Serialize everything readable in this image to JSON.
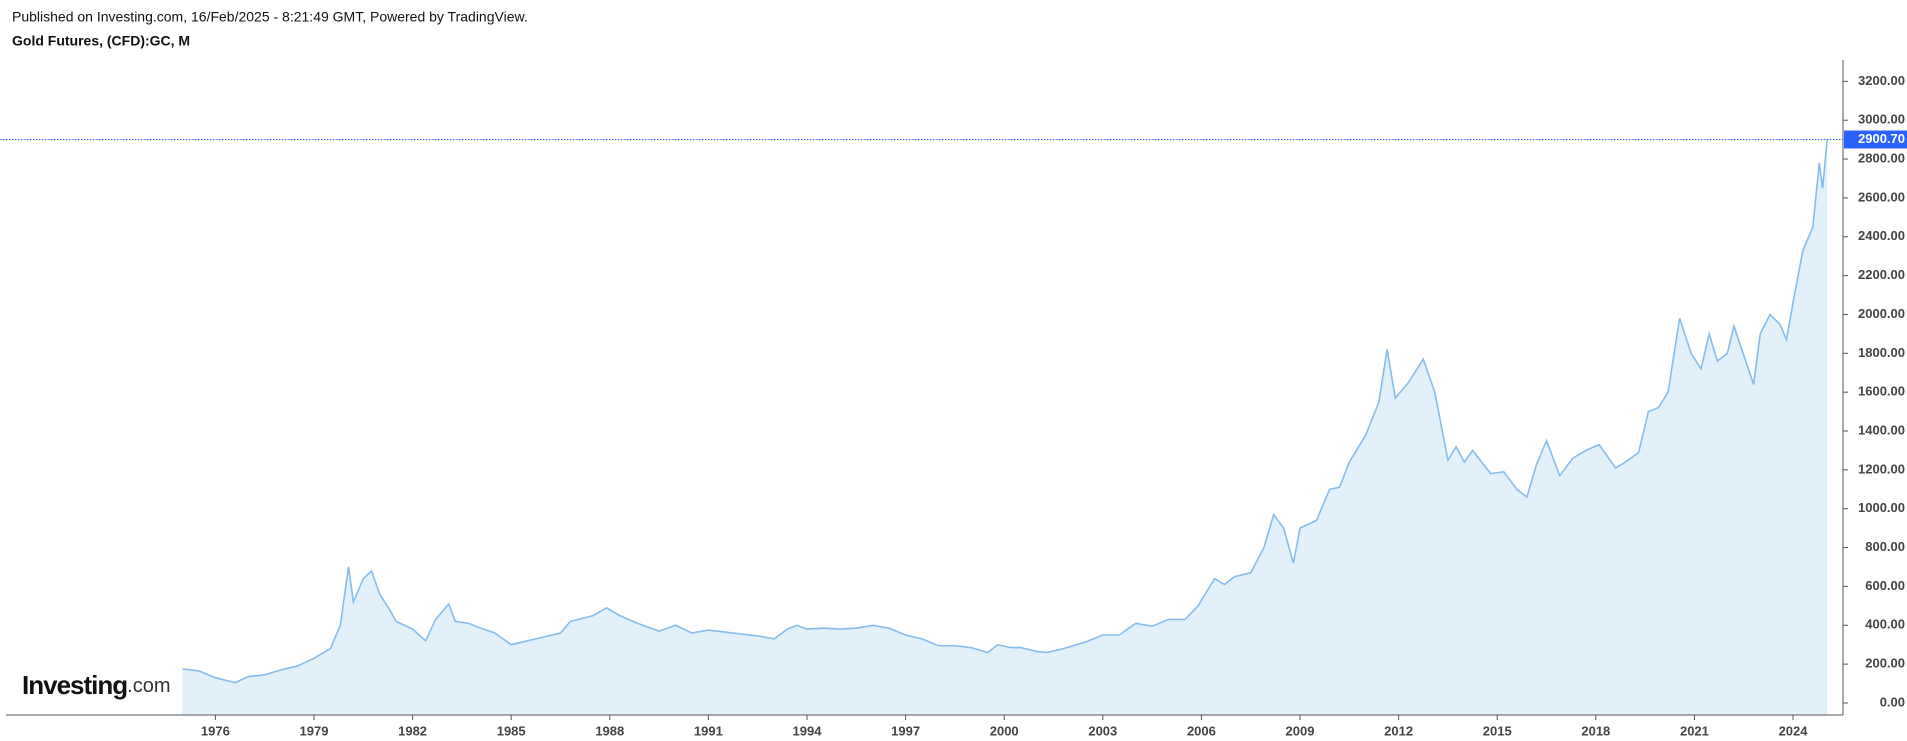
{
  "header": {
    "published": "Published on Investing.com, 16/Feb/2025 - 8:21:49 GMT, Powered by TradingView.",
    "symbol": "Gold Futures, (CFD):GC, M"
  },
  "logo": {
    "brand": "Investing",
    "suffix": ".com"
  },
  "chart_data": {
    "type": "area",
    "color": "#86bdec",
    "fill": "#e2f0fa",
    "grid": false,
    "x": [
      1975.0,
      1975.5,
      1976.0,
      1976.6,
      1977.0,
      1977.5,
      1978.0,
      1978.5,
      1979.0,
      1979.5,
      1979.8,
      1980.05,
      1980.2,
      1980.5,
      1980.75,
      1981.0,
      1981.3,
      1981.5,
      1982.0,
      1982.4,
      1982.7,
      1983.1,
      1983.3,
      1983.7,
      1984.0,
      1984.5,
      1985.0,
      1985.5,
      1986.0,
      1986.5,
      1986.8,
      1987.5,
      1987.9,
      1988.3,
      1988.7,
      1989.0,
      1989.5,
      1990.0,
      1990.5,
      1991.0,
      1991.5,
      1992.0,
      1992.5,
      1993.0,
      1993.4,
      1993.7,
      1994.0,
      1994.5,
      1995.0,
      1995.5,
      1996.0,
      1996.5,
      1997.0,
      1997.5,
      1998.0,
      1998.5,
      1999.0,
      1999.5,
      1999.8,
      2000.2,
      2000.5,
      2001.0,
      2001.3,
      2001.8,
      2002.2,
      2002.5,
      2003.0,
      2003.5,
      2004.0,
      2004.5,
      2005.0,
      2005.5,
      2005.9,
      2006.4,
      2006.7,
      2007.0,
      2007.5,
      2007.9,
      2008.2,
      2008.5,
      2008.8,
      2009.0,
      2009.5,
      2009.9,
      2010.2,
      2010.5,
      2011.0,
      2011.4,
      2011.65,
      2011.9,
      2012.3,
      2012.75,
      2013.1,
      2013.5,
      2013.75,
      2014.0,
      2014.25,
      2014.8,
      2015.2,
      2015.6,
      2015.9,
      2016.2,
      2016.5,
      2016.9,
      2017.3,
      2017.7,
      2018.1,
      2018.6,
      2018.9,
      2019.3,
      2019.6,
      2019.9,
      2020.2,
      2020.55,
      2020.9,
      2021.2,
      2021.45,
      2021.7,
      2022.0,
      2022.2,
      2022.8,
      2023.0,
      2023.3,
      2023.6,
      2023.8,
      2024.0,
      2024.3,
      2024.6,
      2024.8,
      2024.9,
      2025.04
    ],
    "values": [
      175,
      165,
      130,
      105,
      135,
      145,
      170,
      190,
      230,
      280,
      400,
      700,
      520,
      640,
      680,
      560,
      480,
      420,
      380,
      320,
      430,
      510,
      420,
      410,
      390,
      360,
      300,
      320,
      340,
      360,
      420,
      450,
      490,
      450,
      420,
      400,
      370,
      400,
      360,
      375,
      365,
      355,
      345,
      330,
      380,
      400,
      380,
      385,
      380,
      385,
      400,
      385,
      350,
      330,
      295,
      295,
      285,
      260,
      300,
      285,
      285,
      265,
      260,
      280,
      300,
      315,
      350,
      350,
      410,
      395,
      430,
      430,
      500,
      640,
      610,
      650,
      670,
      800,
      970,
      900,
      720,
      900,
      940,
      1100,
      1110,
      1240,
      1380,
      1550,
      1820,
      1570,
      1650,
      1770,
      1600,
      1250,
      1320,
      1240,
      1300,
      1180,
      1190,
      1100,
      1060,
      1230,
      1350,
      1170,
      1260,
      1300,
      1330,
      1210,
      1240,
      1290,
      1500,
      1520,
      1600,
      1980,
      1800,
      1720,
      1900,
      1760,
      1800,
      1940,
      1640,
      1900,
      2000,
      1950,
      1870,
      2060,
      2330,
      2450,
      2780,
      2650,
      2900.7
    ],
    "xlim": [
      1969.63,
      2025.52
    ],
    "xticks": [
      1976,
      1979,
      1982,
      1985,
      1988,
      1991,
      1994,
      1997,
      2000,
      2003,
      2006,
      2009,
      2012,
      2015,
      2018,
      2021,
      2024
    ],
    "ylim": [
      -62,
      3310
    ],
    "yticks": [
      {
        "value": 0,
        "label": "0.00"
      },
      {
        "value": 200,
        "label": "200.00"
      },
      {
        "value": 400,
        "label": "400.00"
      },
      {
        "value": 600,
        "label": "600.00"
      },
      {
        "value": 800,
        "label": "800.00"
      },
      {
        "value": 1000,
        "label": "1000.00"
      },
      {
        "value": 1200,
        "label": "1200.00"
      },
      {
        "value": 1400,
        "label": "1400.00"
      },
      {
        "value": 1600,
        "label": "1600.00"
      },
      {
        "value": 1800,
        "label": "1800.00"
      },
      {
        "value": 2000,
        "label": "2000.00"
      },
      {
        "value": 2200,
        "label": "2200.00"
      },
      {
        "value": 2400,
        "label": "2400.00"
      },
      {
        "value": 2600,
        "label": "2600.00"
      },
      {
        "value": 2800,
        "label": "2800.00"
      },
      {
        "value": 3000,
        "label": "3000.00"
      },
      {
        "value": 3200,
        "label": "3200.00"
      }
    ],
    "last_price": {
      "value": 2900.7,
      "label": "2900.70",
      "color": "#2962ff"
    }
  }
}
